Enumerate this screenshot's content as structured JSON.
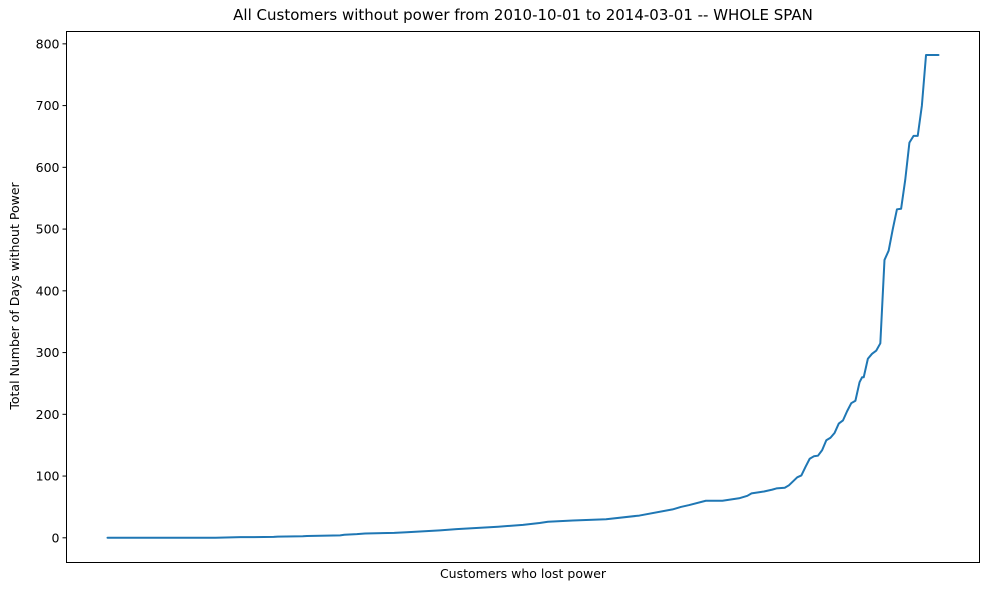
{
  "chart_data": {
    "type": "line",
    "title": "All Customers without power from 2010-10-01 to 2014-03-01 -- WHOLE SPAN",
    "xlabel": "Customers who lost power",
    "ylabel": "Total Number of Days without Power",
    "x_ticks_shown": false,
    "ylim": [
      -40,
      820
    ],
    "y_ticks": [
      0,
      100,
      200,
      300,
      400,
      500,
      600,
      700,
      800
    ],
    "y_tick_labels": [
      "0",
      "100",
      "200",
      "300",
      "400",
      "500",
      "600",
      "700",
      "800"
    ],
    "grid": false,
    "legend": "none",
    "color": "#1f77b4",
    "series": [
      {
        "x": [
          0,
          0.13,
          0.16,
          0.17,
          0.2,
          0.205,
          0.235,
          0.24,
          0.28,
          0.285,
          0.3,
          0.31,
          0.345,
          0.36,
          0.4,
          0.42,
          0.47,
          0.5,
          0.52,
          0.53,
          0.56,
          0.6,
          0.64,
          0.68,
          0.69,
          0.7,
          0.72,
          0.74,
          0.76,
          0.77,
          0.775,
          0.785,
          0.79,
          0.8,
          0.805,
          0.815,
          0.82,
          0.83,
          0.835,
          0.84,
          0.845,
          0.85,
          0.855,
          0.86,
          0.865,
          0.87,
          0.875,
          0.88,
          0.885,
          0.89,
          0.895,
          0.9,
          0.905,
          0.908,
          0.91,
          0.915,
          0.92,
          0.925,
          0.93,
          0.935,
          0.94,
          0.945,
          0.95,
          0.955,
          0.96,
          0.965,
          0.97,
          0.975,
          0.98,
          0.985,
          0.99,
          0.993,
          0.995,
          0.997,
          1.0
        ],
        "y": [
          0,
          0,
          1,
          1,
          1.5,
          2,
          2.5,
          3,
          4,
          5,
          6,
          7,
          8,
          9,
          12,
          14,
          18,
          21,
          24,
          26,
          28,
          30,
          36,
          46,
          50,
          53,
          60,
          60,
          64,
          68,
          72,
          74,
          75,
          78,
          80,
          81,
          85,
          98,
          101,
          115,
          128,
          132,
          133,
          142,
          158,
          162,
          170,
          185,
          190,
          205,
          218,
          222,
          252,
          260,
          260,
          290,
          298,
          303,
          315,
          450,
          465,
          500,
          532,
          533,
          580,
          640,
          651,
          651,
          700,
          782,
          782,
          782,
          782,
          782,
          782
        ]
      }
    ]
  }
}
